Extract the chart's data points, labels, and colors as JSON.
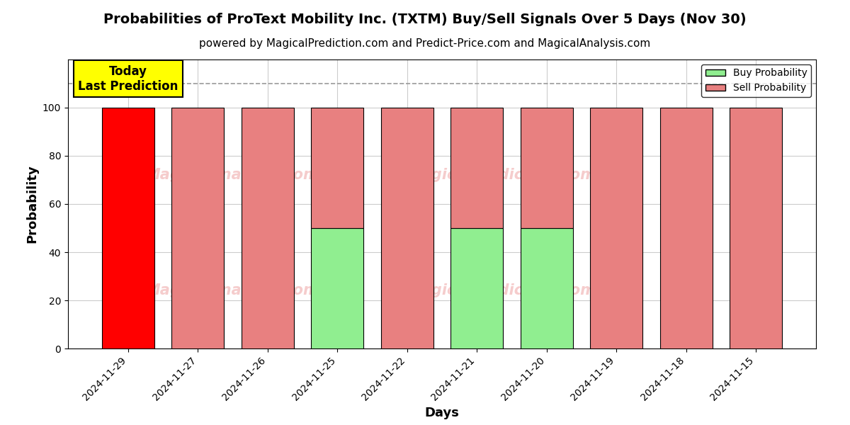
{
  "title": "Probabilities of ProText Mobility Inc. (TXTM) Buy/Sell Signals Over 5 Days (Nov 30)",
  "subtitle": "powered by MagicalPrediction.com and Predict-Price.com and MagicalAnalysis.com",
  "xlabel": "Days",
  "ylabel": "Probability",
  "dates": [
    "2024-11-29",
    "2024-11-27",
    "2024-11-26",
    "2024-11-25",
    "2024-11-22",
    "2024-11-21",
    "2024-11-20",
    "2024-11-19",
    "2024-11-18",
    "2024-11-15"
  ],
  "buy_probs": [
    0,
    0,
    0,
    50,
    0,
    50,
    50,
    0,
    0,
    0
  ],
  "sell_probs": [
    100,
    100,
    100,
    50,
    100,
    50,
    50,
    100,
    100,
    100
  ],
  "today_bar_index": 0,
  "today_bar_color": "#ff0000",
  "other_bar_buy_color": "#90EE90",
  "other_bar_sell_color": "#E88080",
  "today_annotation_text": "Today\nLast Prediction",
  "today_annotation_facecolor": "#ffff00",
  "dashed_line_y": 110,
  "dashed_line_color": "#999999",
  "ylim": [
    0,
    120
  ],
  "yticks": [
    0,
    20,
    40,
    60,
    80,
    100
  ],
  "background_color": "#ffffff",
  "grid_color": "#cccccc",
  "watermark_color": "#E88080",
  "watermark_alpha": 0.4,
  "legend_buy_label": "Buy Probability",
  "legend_sell_label": "Sell Probability",
  "bar_width": 0.75,
  "title_fontsize": 14,
  "subtitle_fontsize": 11,
  "axis_label_fontsize": 13,
  "tick_fontsize": 10
}
